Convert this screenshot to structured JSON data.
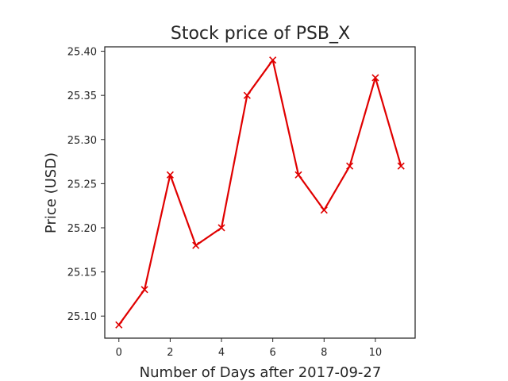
{
  "chart_data": {
    "type": "line",
    "title": "Stock price of PSB_X",
    "xlabel": "Number of Days after 2017-09-27",
    "ylabel": "Price (USD)",
    "x": [
      0,
      1,
      2,
      3,
      4,
      5,
      6,
      7,
      8,
      9,
      10,
      11
    ],
    "series": [
      {
        "values": [
          25.09,
          25.13,
          25.26,
          25.18,
          25.2,
          25.35,
          25.39,
          25.26,
          25.22,
          25.27,
          25.37,
          25.27
        ],
        "color": "#e00000",
        "marker": "x"
      }
    ],
    "xlim": [
      -0.55,
      11.55
    ],
    "ylim": [
      25.075,
      25.405
    ],
    "xticks": [
      0,
      2,
      4,
      6,
      8,
      10
    ],
    "xtick_labels": [
      "0",
      "2",
      "4",
      "6",
      "8",
      "10"
    ],
    "yticks": [
      25.1,
      25.15,
      25.2,
      25.25,
      25.3,
      25.35,
      25.4
    ],
    "ytick_labels": [
      "25.10",
      "25.15",
      "25.20",
      "25.25",
      "25.30",
      "25.35",
      "25.40"
    ],
    "grid": false,
    "legend": "none"
  }
}
